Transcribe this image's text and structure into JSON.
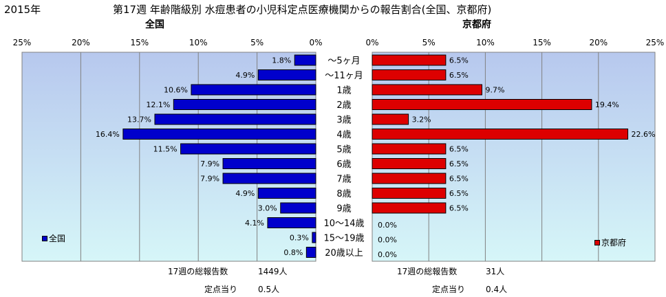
{
  "header": {
    "year": "2015年",
    "title": "第17週 年齢階級別 水痘患者の小児科定点医療機関からの報告割合(全国、京都府)"
  },
  "panels": {
    "left_title": "全国",
    "right_title": "京都府"
  },
  "colors": {
    "national_bar": "#0000cc",
    "kyoto_bar": "#dd0000",
    "plot_bg_top": "#b7c8ee",
    "plot_bg_bottom": "#d6f6f8",
    "grid": "#808080"
  },
  "footer": {
    "national_total_label": "17週の総報告数",
    "national_total_value": "1449人",
    "national_per_label": "定点当り",
    "national_per_value": "0.5人",
    "kyoto_total_label": "17週の総報告数",
    "kyoto_total_value": "31人",
    "kyoto_per_label": "定点当り",
    "kyoto_per_value": "0.4人"
  },
  "chart_data": [
    {
      "type": "bar",
      "orientation": "horizontal",
      "direction": "right-to-left",
      "title": "全国",
      "categories": [
        "～5ヶ月",
        "～11ヶ月",
        "1歳",
        "2歳",
        "3歳",
        "4歳",
        "5歳",
        "6歳",
        "7歳",
        "8歳",
        "9歳",
        "10～14歳",
        "15～19歳",
        "20歳以上"
      ],
      "series": [
        {
          "name": "全国",
          "values": [
            1.8,
            4.9,
            10.6,
            12.1,
            13.7,
            16.4,
            11.5,
            7.9,
            7.9,
            4.9,
            3.0,
            4.1,
            0.3,
            0.8
          ]
        }
      ],
      "value_labels": [
        "1.8%",
        "4.9%",
        "10.6%",
        "12.1%",
        "13.7%",
        "16.4%",
        "11.5%",
        "7.9%",
        "7.9%",
        "4.9%",
        "3.0%",
        "4.1%",
        "0.3%",
        "0.8%"
      ],
      "xlim": [
        0,
        25
      ],
      "ticks": [
        "0%",
        "5%",
        "10%",
        "15%",
        "20%",
        "25%"
      ],
      "grid": true,
      "legend": "bottom-left"
    },
    {
      "type": "bar",
      "orientation": "horizontal",
      "direction": "left-to-right",
      "title": "京都府",
      "categories": [
        "～5ヶ月",
        "～11ヶ月",
        "1歳",
        "2歳",
        "3歳",
        "4歳",
        "5歳",
        "6歳",
        "7歳",
        "8歳",
        "9歳",
        "10～14歳",
        "15～19歳",
        "20歳以上"
      ],
      "series": [
        {
          "name": "京都府",
          "values": [
            6.5,
            6.5,
            9.7,
            19.4,
            3.2,
            22.6,
            6.5,
            6.5,
            6.5,
            6.5,
            6.5,
            0.0,
            0.0,
            0.0
          ]
        }
      ],
      "value_labels": [
        "6.5%",
        "6.5%",
        "9.7%",
        "19.4%",
        "3.2%",
        "22.6%",
        "6.5%",
        "6.5%",
        "6.5%",
        "6.5%",
        "6.5%",
        "0.0%",
        "0.0%",
        "0.0%"
      ],
      "xlim": [
        0,
        25
      ],
      "ticks": [
        "0%",
        "5%",
        "10%",
        "15%",
        "20%",
        "25%"
      ],
      "grid": true,
      "legend": "bottom-right"
    }
  ]
}
